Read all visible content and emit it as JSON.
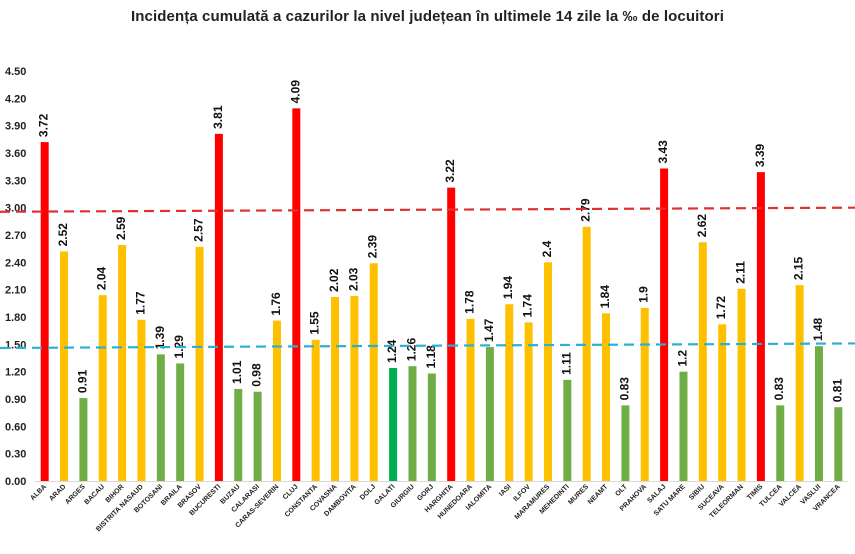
{
  "chart_data": {
    "type": "bar",
    "title": "Incidența cumulată a cazurilor la nivel județean în ultimele 14 zile la ‰ de locuitori",
    "xlabel": "",
    "ylabel": "",
    "ylim": [
      0,
      4.5
    ],
    "yticks": [
      "0.00",
      "0.30",
      "0.60",
      "0.90",
      "1.20",
      "1.50",
      "1.80",
      "2.10",
      "2.40",
      "2.70",
      "3.00",
      "3.30",
      "3.60",
      "3.90",
      "4.20",
      "4.50"
    ],
    "grid": false,
    "legend": "none",
    "categories": [
      "ALBA",
      "ARAD",
      "ARGES",
      "BACAU",
      "BIHOR",
      "BISTRITA NASAUD",
      "BOTOSANI",
      "BRAILA",
      "BRASOV",
      "BUCURESTI",
      "BUZAU",
      "CALARASI",
      "CARAS-SEVERIN",
      "CLUJ",
      "CONSTANTA",
      "COVASNA",
      "DAMBOVITA",
      "DOLJ",
      "GALATI",
      "GIURGIU",
      "GORJ",
      "HARGHITA",
      "HUNEDOARA",
      "IALOMITA",
      "IASI",
      "ILFOV",
      "MARAMURES",
      "MEHEDINTI",
      "MURES",
      "NEAMT",
      "OLT",
      "PRAHOVA",
      "SALAJ",
      "SATU MARE",
      "SIBIU",
      "SUCEAVA",
      "TELEORMAN",
      "TIMIS",
      "TULCEA",
      "VALCEA",
      "VASLUI",
      "VRANCEA"
    ],
    "values": [
      3.72,
      2.52,
      0.91,
      2.04,
      2.59,
      1.77,
      1.39,
      1.29,
      2.57,
      3.81,
      1.01,
      0.98,
      1.76,
      4.09,
      1.55,
      2.02,
      2.03,
      2.39,
      1.24,
      1.26,
      1.18,
      3.22,
      1.78,
      1.47,
      1.94,
      1.74,
      2.4,
      1.11,
      2.79,
      1.84,
      0.83,
      1.9,
      3.43,
      1.2,
      2.62,
      1.72,
      2.11,
      3.39,
      0.83,
      2.15,
      1.48,
      0.81
    ],
    "value_labels": [
      "3.72",
      "2.52",
      "0.91",
      "2.04",
      "2.59",
      "1.77",
      "1.39",
      "1.29",
      "2.57",
      "3.81",
      "1.01",
      "0.98",
      "1.76",
      "4.09",
      "1.55",
      "2.02",
      "2.03",
      "2.39",
      "1.24",
      "1.26",
      "1.18",
      "3.22",
      "1.78",
      "1.47",
      "1.94",
      "1.74",
      "2.4",
      "1.11",
      "2.79",
      "1.84",
      "0.83",
      "1.9",
      "3.43",
      "1.2",
      "2.62",
      "1.72",
      "2.11",
      "3.39",
      "0.83",
      "2.15",
      "1.48",
      "0.81"
    ],
    "bar_colors": [
      "red",
      "yellow",
      "green",
      "yellow",
      "yellow",
      "yellow",
      "green",
      "green",
      "yellow",
      "red",
      "green",
      "green",
      "yellow",
      "red",
      "yellow",
      "yellow",
      "yellow",
      "yellow",
      "darkgreen",
      "green",
      "green",
      "red",
      "yellow",
      "green",
      "yellow",
      "yellow",
      "yellow",
      "green",
      "yellow",
      "yellow",
      "green",
      "yellow",
      "red",
      "green",
      "yellow",
      "yellow",
      "yellow",
      "red",
      "green",
      "yellow",
      "green",
      "green"
    ],
    "palette": {
      "red": "#ff0000",
      "yellow": "#ffc000",
      "green": "#70ad47",
      "darkgreen": "#00b050"
    },
    "thresholds": [
      {
        "start": 2.955,
        "end": 3.0,
        "color": "#e03030",
        "style": "dashed"
      },
      {
        "start": 1.46,
        "end": 1.51,
        "color": "#2ab0d8",
        "style": "dashed"
      }
    ]
  }
}
